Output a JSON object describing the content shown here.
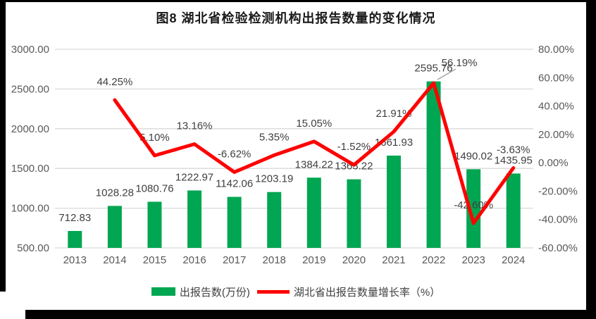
{
  "title": "图8  湖北省检验检测机构出报告数量的变化情况",
  "legend": {
    "items": [
      {
        "label": "出报告数(万份)",
        "swatch": "green-bar-swatch"
      },
      {
        "label": "湖北省出报告数量增长率（%）",
        "swatch": "red-line-swatch"
      }
    ]
  },
  "chart_data": {
    "type": "bar",
    "title": "图8  湖北省检验检测机构出报告数量的变化情况",
    "categories": [
      "2013",
      "2014",
      "2015",
      "2016",
      "2017",
      "2018",
      "2019",
      "2020",
      "2021",
      "2022",
      "2023",
      "2024"
    ],
    "series": [
      {
        "name": "出报告数(万份)",
        "type": "bar",
        "axis": "left",
        "color": "#00A651",
        "values": [
          712.83,
          1028.28,
          1080.76,
          1222.97,
          1142.06,
          1203.19,
          1384.22,
          1363.22,
          1661.93,
          2595.76,
          1490.02,
          1435.95
        ],
        "labels": [
          "712.83",
          "1028.28",
          "1080.76",
          "1222.97",
          "1142.06",
          "1203.19",
          "1384.22",
          "1363.22",
          "1661.93",
          "2595.76",
          "1490.02",
          "1435.95"
        ]
      },
      {
        "name": "湖北省出报告数量增长率（%）",
        "type": "line",
        "axis": "right",
        "color": "#FF0000",
        "values": [
          null,
          44.25,
          5.1,
          13.16,
          -6.62,
          5.35,
          15.05,
          -1.52,
          21.91,
          56.19,
          -42.6,
          -3.63
        ],
        "labels": [
          null,
          "44.25%",
          "5.10%",
          "13.16%",
          "-6.62%",
          "5.35%",
          "15.05%",
          "-1.52%",
          "21.91%",
          "56.19%",
          "-42.60%",
          "-3.63%"
        ]
      }
    ],
    "left_axis": {
      "min": 500,
      "max": 3000,
      "step": 500,
      "tick_labels": [
        "3000.00",
        "2500.00",
        "2000.00",
        "1500.00",
        "1000.00",
        "500.00"
      ]
    },
    "right_axis": {
      "min": -60,
      "max": 80,
      "step": 20,
      "tick_labels": [
        "80.00%",
        "60.00%",
        "40.00%",
        "20.00%",
        "0.00%",
        "-20.00%",
        "-40.00%",
        "-60.00%"
      ]
    },
    "grid": true,
    "legend_position": "bottom",
    "colors": {
      "gridline": "#D9D9D9",
      "axis_text": "#595959",
      "data_label": "#3F3F3F",
      "leader_line": "#A6A6A6"
    }
  }
}
